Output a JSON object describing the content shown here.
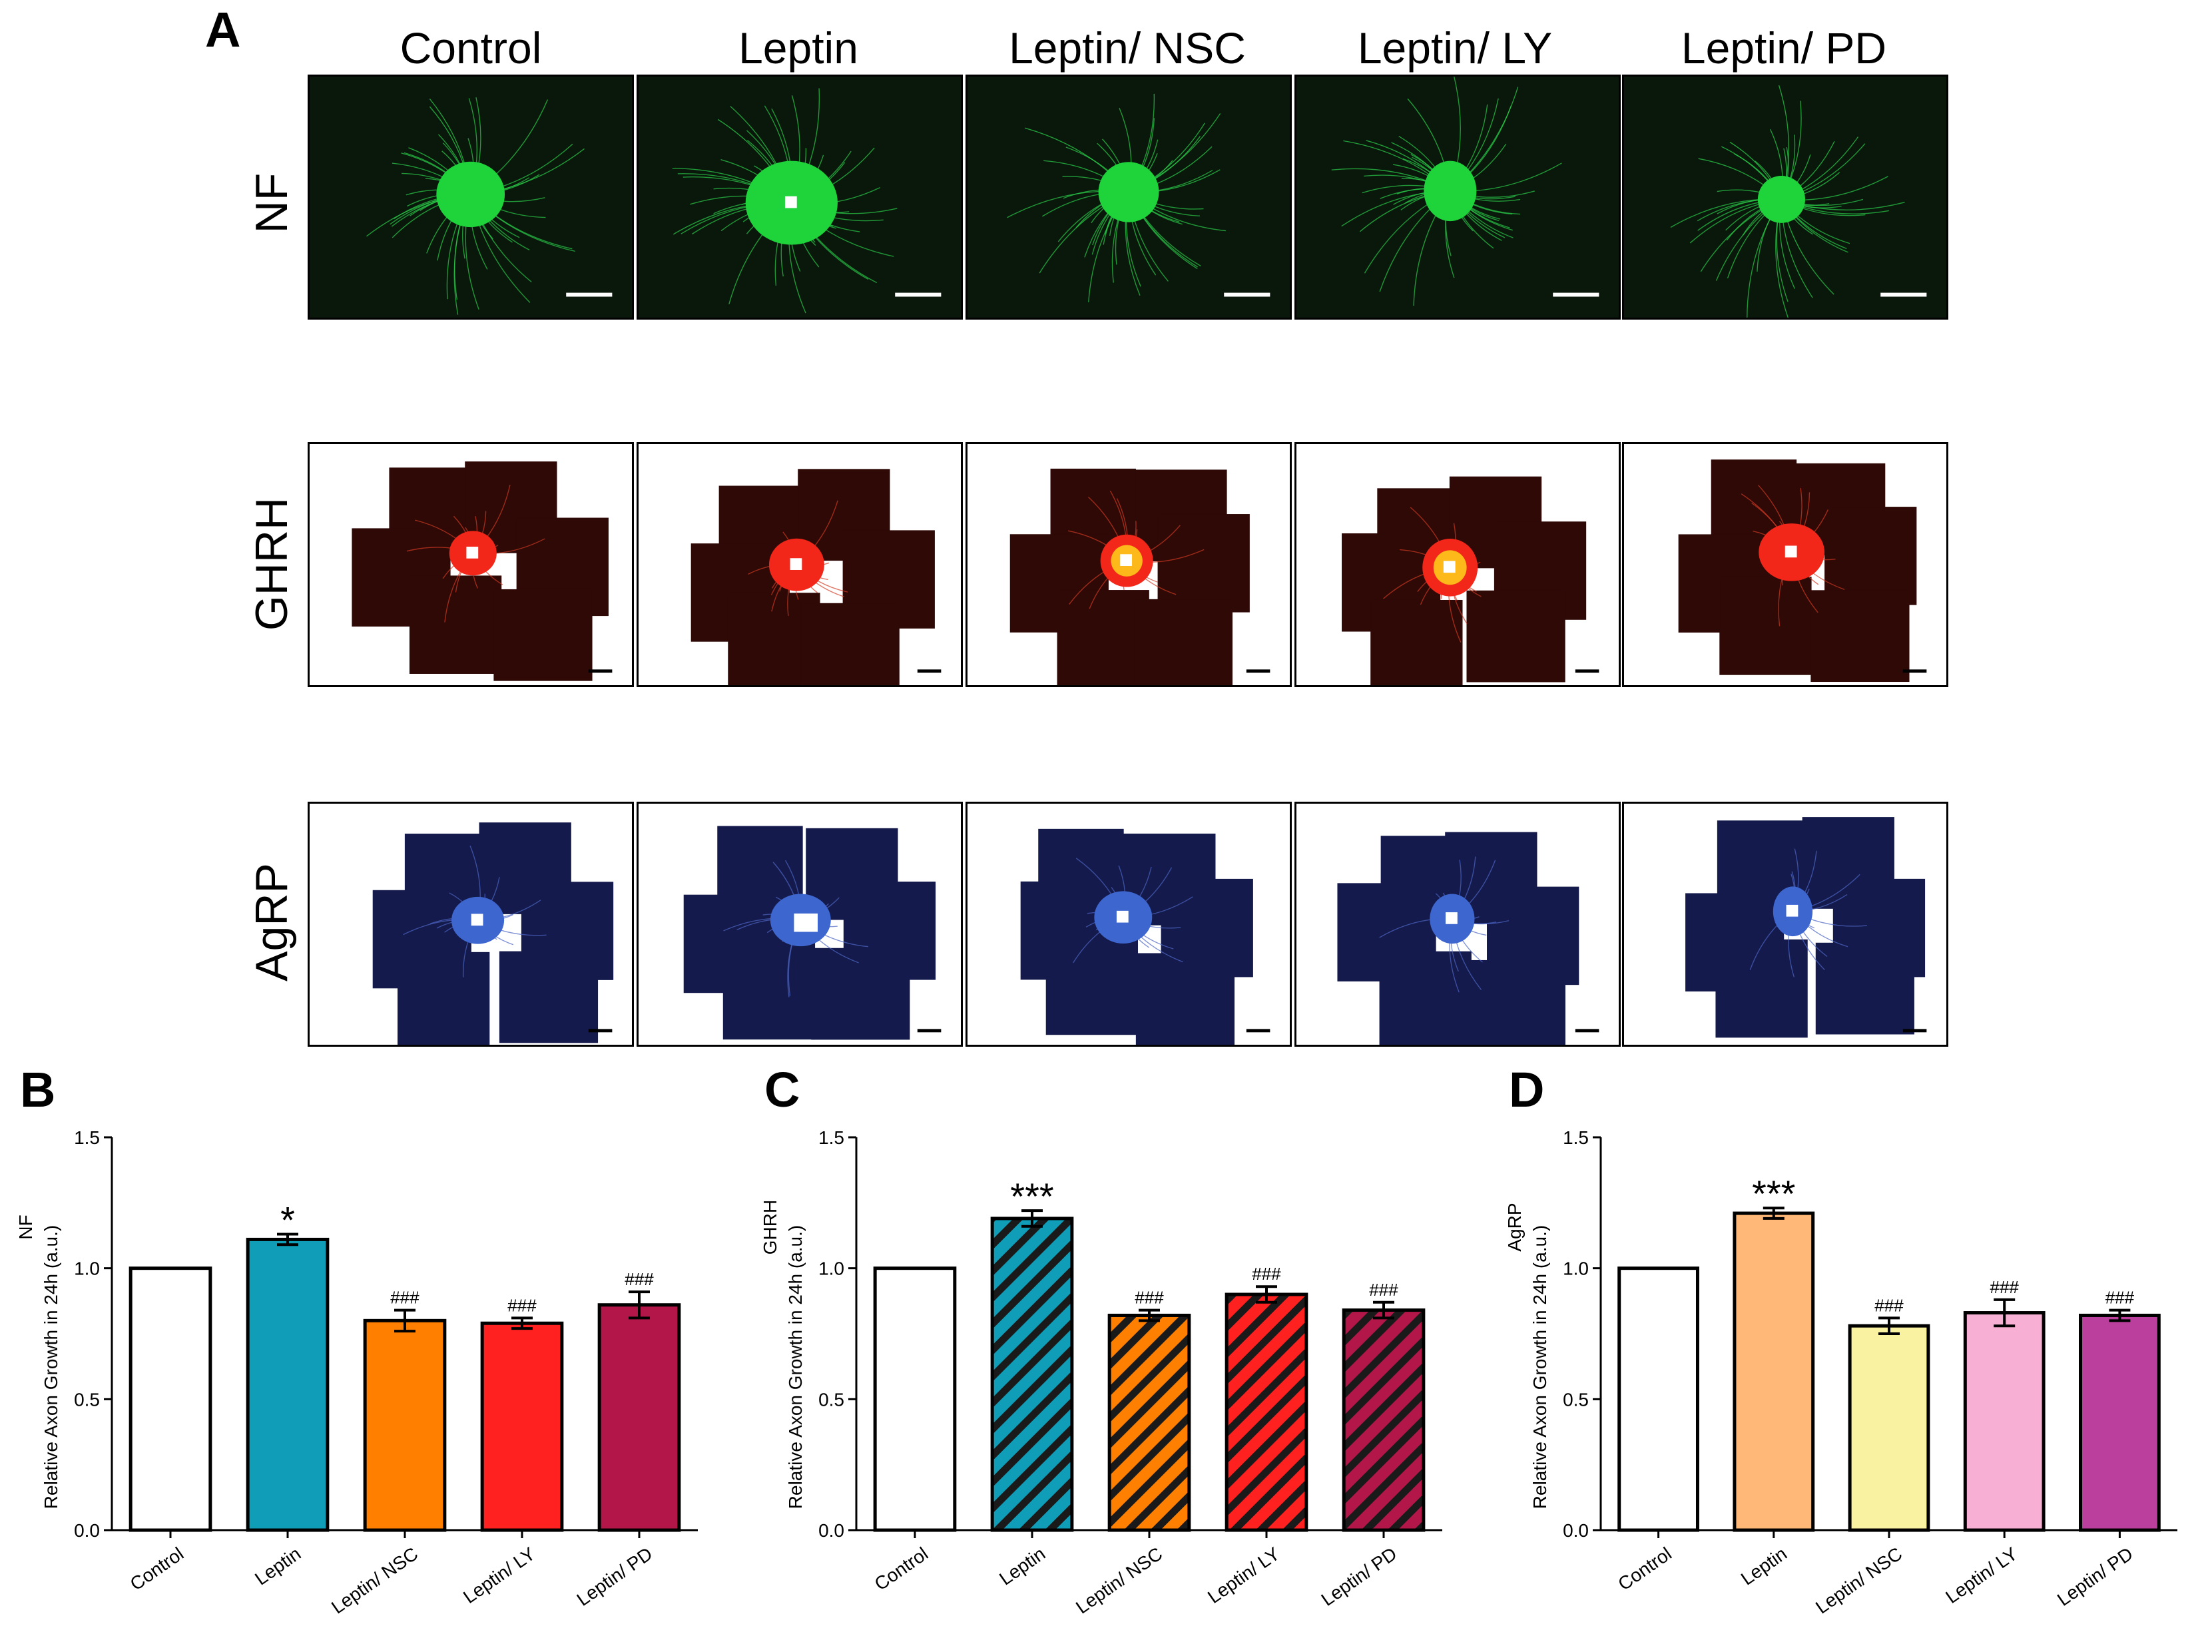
{
  "figure": {
    "panel_letters": [
      "A",
      "B",
      "C",
      "D"
    ],
    "conditions": [
      "Control",
      "Leptin",
      "Leptin/ NSC",
      "Leptin/ LY",
      "Leptin/ PD"
    ],
    "rows": [
      {
        "label": "NF",
        "theme": "green",
        "bg": "#0a180c",
        "stroke": "#2bd04a",
        "core": "#1fd43a"
      },
      {
        "label": "GHRH",
        "theme": "red",
        "bg": "#2e0906",
        "stroke": "#d23a22",
        "core": "#f2271a"
      },
      {
        "label": "AgRP",
        "theme": "blue",
        "bg": "#141a4c",
        "stroke": "#4d66c4",
        "core": "#3e66cf"
      }
    ]
  },
  "chart_data": [
    {
      "panel": "B",
      "type": "bar",
      "ylabel_marker": "NF",
      "ylabel": "Relative Axon Growth in 24h (a.u.)",
      "categories": [
        "Control",
        "Leptin",
        "Leptin/ NSC",
        "Leptin/ LY",
        "Leptin/ PD"
      ],
      "values": [
        1.0,
        1.11,
        0.8,
        0.79,
        0.86
      ],
      "errors": [
        0.0,
        0.02,
        0.04,
        0.02,
        0.05
      ],
      "annotations": [
        "",
        "*",
        "###",
        "###",
        "###"
      ],
      "colors": [
        "#ffffff",
        "#0f9db8",
        "#ff8000",
        "#ff2020",
        "#b3174a"
      ],
      "hatched": false,
      "ylim": [
        0.0,
        1.5
      ],
      "yticks": [
        "0.0",
        "0.5",
        "1.0",
        "1.5"
      ]
    },
    {
      "panel": "C",
      "type": "bar",
      "ylabel_marker": "GHRH",
      "ylabel": "Relative Axon Growth in 24h (a.u.)",
      "categories": [
        "Control",
        "Leptin",
        "Leptin/ NSC",
        "Leptin/ LY",
        "Leptin/ PD"
      ],
      "values": [
        1.0,
        1.19,
        0.82,
        0.9,
        0.84
      ],
      "errors": [
        0.0,
        0.03,
        0.02,
        0.03,
        0.03
      ],
      "annotations": [
        "",
        "***",
        "###",
        "###",
        "###"
      ],
      "colors": [
        "#ffffff",
        "#0f9db8",
        "#ff8000",
        "#ff2020",
        "#b3174a"
      ],
      "hatched": true,
      "ylim": [
        0.0,
        1.5
      ],
      "yticks": [
        "0.0",
        "0.5",
        "1.0",
        "1.5"
      ]
    },
    {
      "panel": "D",
      "type": "bar",
      "ylabel_marker": "AgRP",
      "ylabel": "Relative Axon Growth in 24h (a.u.)",
      "categories": [
        "Control",
        "Leptin",
        "Leptin/ NSC",
        "Leptin/ LY",
        "Leptin/ PD"
      ],
      "values": [
        1.0,
        1.21,
        0.78,
        0.83,
        0.82
      ],
      "errors": [
        0.0,
        0.02,
        0.03,
        0.05,
        0.02
      ],
      "annotations": [
        "",
        "***",
        "###",
        "###",
        "###"
      ],
      "colors": [
        "#ffffff",
        "#ffb878",
        "#f9f2a0",
        "#f7b0d4",
        "#bb3f9c"
      ],
      "hatched": false,
      "ylim": [
        0.0,
        1.5
      ],
      "yticks": [
        "0.0",
        "0.5",
        "1.0",
        "1.5"
      ]
    }
  ]
}
